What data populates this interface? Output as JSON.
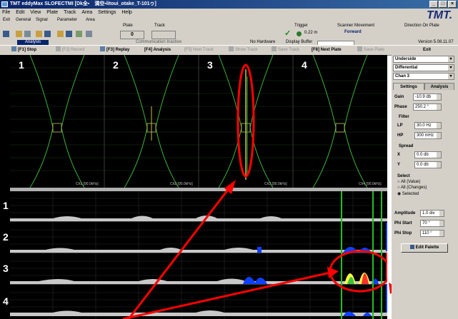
{
  "window": {
    "title": "TMT eddyMax SLOFECTMI [Dk全▪　満空▪litoui_otake_T-101ゥ]",
    "min": "_",
    "max": "□",
    "close": "×"
  },
  "menu": [
    "File",
    "Edit",
    "View",
    "Plate",
    "Track",
    "Area",
    "Settings",
    "Help"
  ],
  "toolbar": {
    "group_labels": [
      "Exit",
      "General",
      "Signal",
      "Parameter",
      "Area",
      "Plate",
      "Track"
    ],
    "plate_value": "0",
    "analysis_label": "Analysis",
    "communication": "Communication Inactive",
    "no_hardware": "No Hardware",
    "display_buffer": "Display Buffer",
    "trigger_label": "Trigger",
    "distance": "0.22 m",
    "scanner_label": "Scanner Movement",
    "scanner_value": "Forward",
    "direction_label": "Direction On Plate",
    "version": "Version 5.08.11.07",
    "logo": "TMT."
  },
  "commands": [
    {
      "label": "[F1] Stop",
      "enabled": true
    },
    {
      "label": "[F2] Record",
      "enabled": false
    },
    {
      "label": "[F3] Replay",
      "enabled": true
    },
    {
      "label": "[F4] Analysis",
      "enabled": true
    },
    {
      "label": "[F5] Next Track",
      "enabled": false
    },
    {
      "label": "Show Track",
      "enabled": false
    },
    {
      "label": "Save Track",
      "enabled": false
    },
    {
      "label": "[F8] Next Plate",
      "enabled": true
    },
    {
      "label": "Save Plate",
      "enabled": false
    },
    {
      "label": "Exit",
      "enabled": true
    }
  ],
  "scope": {
    "channel_numbers": [
      "1",
      "2",
      "3",
      "4"
    ],
    "channel_captions": [
      "Ch1 [90.0kHz]",
      "Ch2 [90.0kHz]",
      "Ch3 [90.0kHz]",
      "Ch4 [90.0kHz]"
    ],
    "strip_numbers": [
      "1",
      "2",
      "3",
      "4"
    ]
  },
  "panel": {
    "dropdowns": [
      "Underside",
      "Differential",
      "Chan 3"
    ],
    "tabs": [
      "Settings",
      "Analysis"
    ],
    "gain_label": "Gain",
    "gain_value": "-10.9 db",
    "phase_label": "Phase",
    "phase_value": "250.2 °",
    "filter_label": "Filter",
    "lp_label": "LP",
    "lp_value": "30.0 Hz",
    "hp_label": "HP",
    "hp_value": "300 mHz",
    "spread_label": "Spread",
    "x_label": "X",
    "x_value": "0.0 db",
    "y_label": "Y",
    "y_value": "0.0 db",
    "select_label": "Select",
    "select_options": [
      "All (Value)",
      "All (Changes)",
      "Selected"
    ],
    "selected_index": 2,
    "amplitude_label": "Amplitude",
    "amplitude_value": "1.0 div",
    "phi_start_label": "Phi Start",
    "phi_start_value": "70 °",
    "phi_stop_label": "Phi Stop",
    "phi_stop_value": "110 °",
    "edit_palette": "Edit Palette"
  },
  "colors": {
    "highlight": "#ff0000",
    "trace": "#00cc00",
    "signal_blue": "#1040ff",
    "signal_yellow": "#ffff40"
  }
}
